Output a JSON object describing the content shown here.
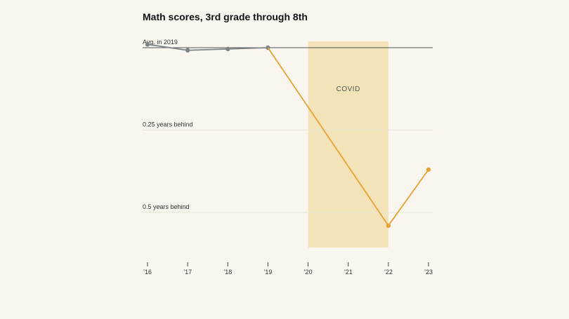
{
  "chart_data": {
    "type": "line",
    "title": "Math scores, 3rd grade through 8th",
    "x_categories": [
      "’16",
      "’17",
      "’18",
      "’19",
      "’20",
      "’21",
      "’22",
      "’23"
    ],
    "y_tick_labels": [
      {
        "value": 0,
        "label": "Avg. in 2019"
      },
      {
        "value": -0.25,
        "label": "0.25 years behind"
      },
      {
        "value": -0.5,
        "label": "0.5 years behind"
      }
    ],
    "ylim": [
      -0.6,
      0.02
    ],
    "shaded_band": {
      "label": "COVID",
      "from": "’20",
      "to": "’22"
    },
    "series": [
      {
        "color": "#7f8585",
        "points": [
          {
            "x": "’16",
            "y": 0.01
          },
          {
            "x": "’17",
            "y": -0.008
          },
          {
            "x": "’18",
            "y": -0.004
          },
          {
            "x": "’19",
            "y": 0
          }
        ]
      },
      {
        "color": "#e6a331",
        "points": [
          {
            "x": "’19",
            "y": 0
          },
          {
            "x": "’22",
            "y": -0.54
          },
          {
            "x": "’23",
            "y": -0.37
          }
        ]
      }
    ],
    "colors": {
      "band": "#f3e3b8",
      "baseline": "#555555",
      "grid": "#e8e4da"
    }
  }
}
